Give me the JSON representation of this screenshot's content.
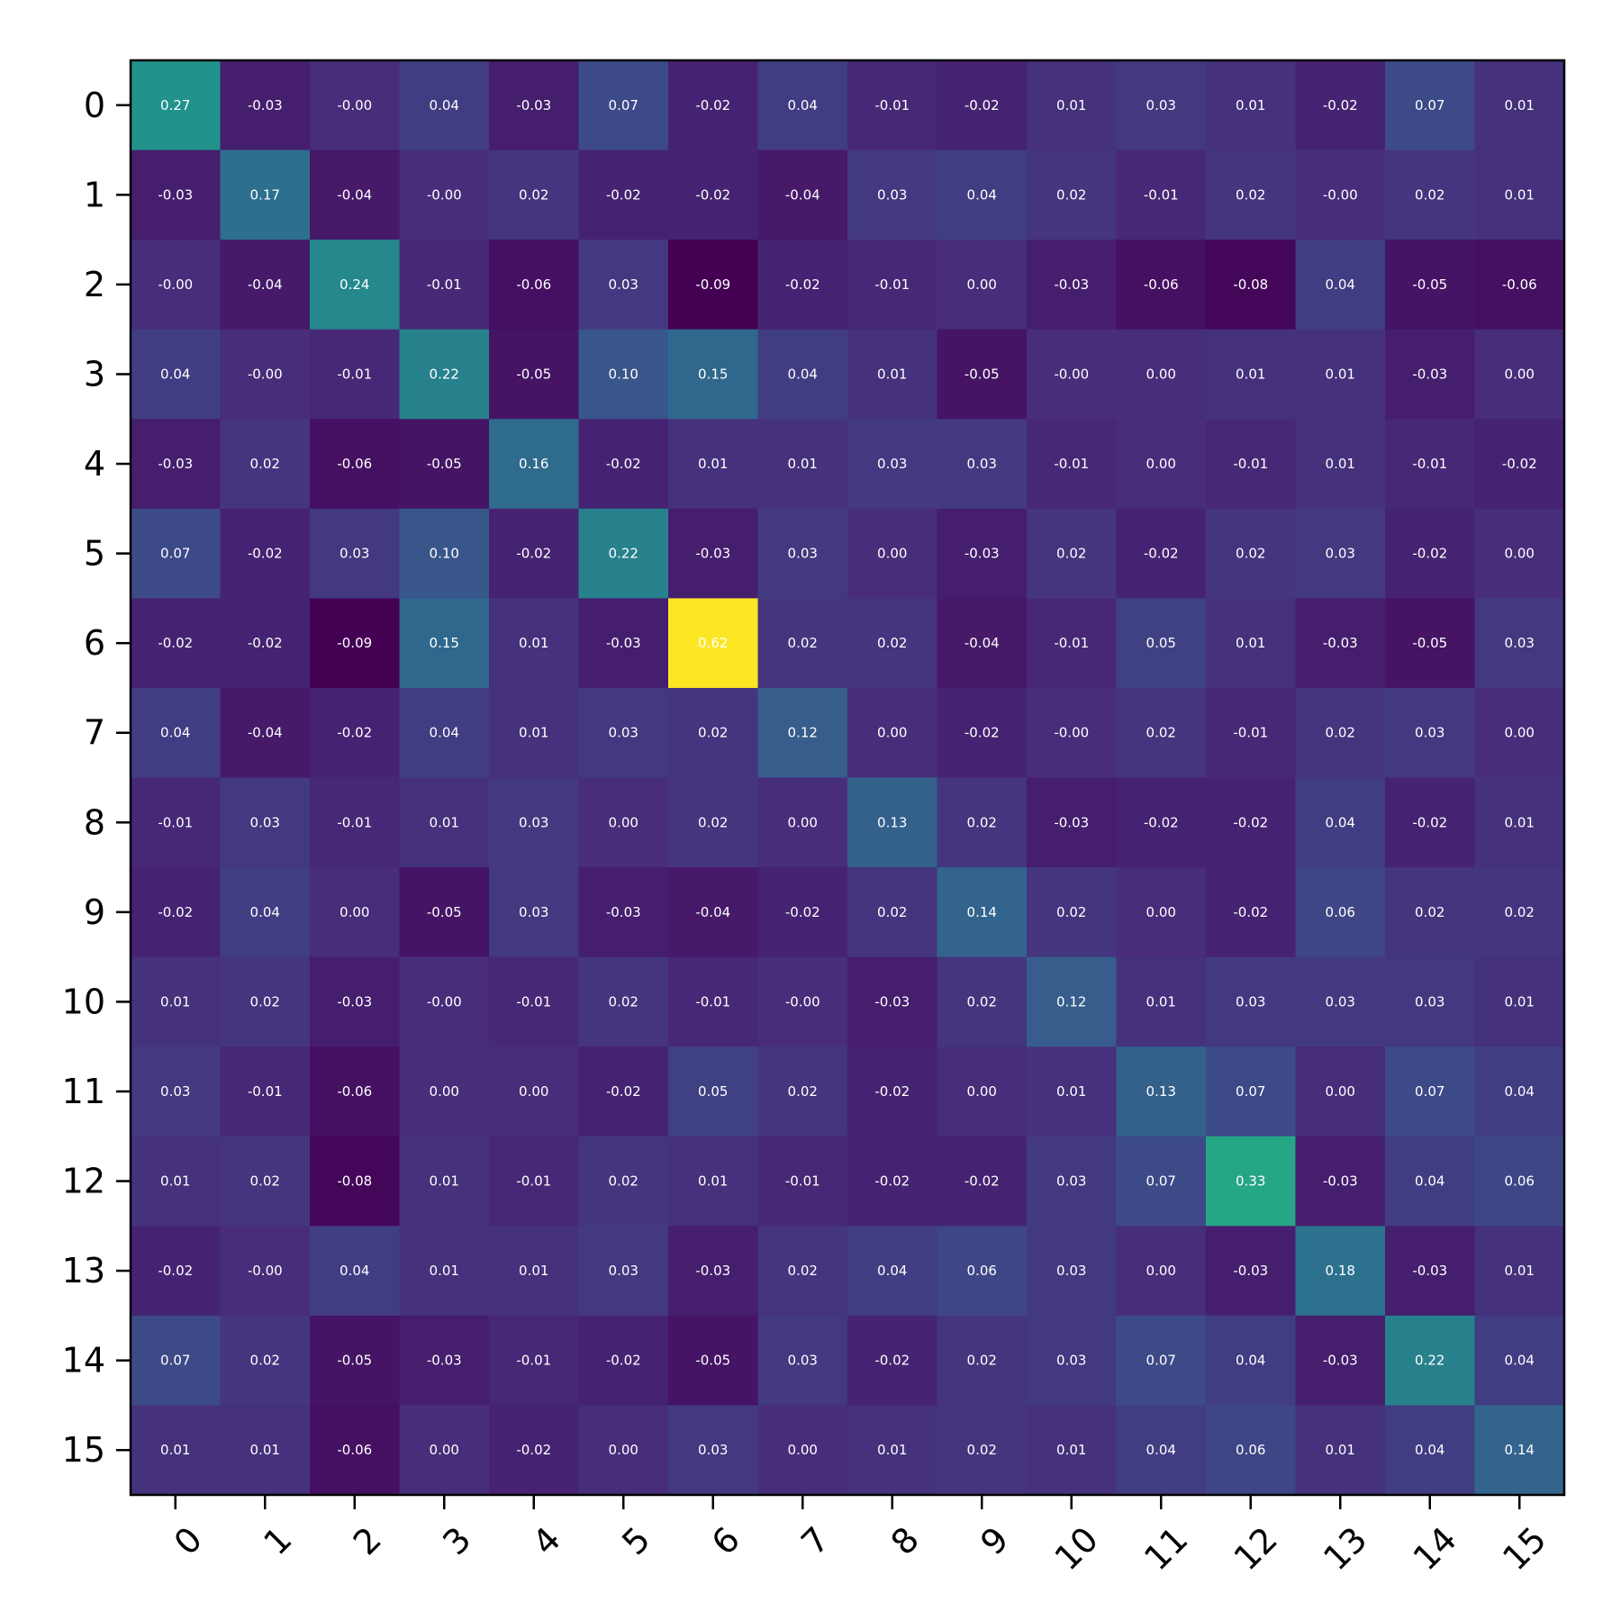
{
  "chart_data": {
    "type": "heatmap",
    "title": "",
    "xlabel": "",
    "ylabel": "",
    "colormap": "viridis",
    "vmin": -0.09,
    "vmax": 0.62,
    "x_tick_labels": [
      "0",
      "1",
      "2",
      "3",
      "4",
      "5",
      "6",
      "7",
      "8",
      "9",
      "10",
      "11",
      "12",
      "13",
      "14",
      "15"
    ],
    "y_tick_labels": [
      "0",
      "1",
      "2",
      "3",
      "4",
      "5",
      "6",
      "7",
      "8",
      "9",
      "10",
      "11",
      "12",
      "13",
      "14",
      "15"
    ],
    "cell_labels": [
      [
        "0.27",
        "-0.03",
        "-0.00",
        "0.04",
        "-0.03",
        "0.07",
        "-0.02",
        "0.04",
        "-0.01",
        "-0.02",
        "0.01",
        "0.03",
        "0.01",
        "-0.02",
        "0.07",
        "0.01"
      ],
      [
        "-0.03",
        "0.17",
        "-0.04",
        "-0.00",
        "0.02",
        "-0.02",
        "-0.02",
        "-0.04",
        "0.03",
        "0.04",
        "0.02",
        "-0.01",
        "0.02",
        "-0.00",
        "0.02",
        "0.01"
      ],
      [
        "-0.00",
        "-0.04",
        "0.24",
        "-0.01",
        "-0.06",
        "0.03",
        "-0.09",
        "-0.02",
        "-0.01",
        "0.00",
        "-0.03",
        "-0.06",
        "-0.08",
        "0.04",
        "-0.05",
        "-0.06"
      ],
      [
        "0.04",
        "-0.00",
        "-0.01",
        "0.22",
        "-0.05",
        "0.10",
        "0.15",
        "0.04",
        "0.01",
        "-0.05",
        "-0.00",
        "0.00",
        "0.01",
        "0.01",
        "-0.03",
        "0.00"
      ],
      [
        "-0.03",
        "0.02",
        "-0.06",
        "-0.05",
        "0.16",
        "-0.02",
        "0.01",
        "0.01",
        "0.03",
        "0.03",
        "-0.01",
        "0.00",
        "-0.01",
        "0.01",
        "-0.01",
        "-0.02"
      ],
      [
        "0.07",
        "-0.02",
        "0.03",
        "0.10",
        "-0.02",
        "0.22",
        "-0.03",
        "0.03",
        "0.00",
        "-0.03",
        "0.02",
        "-0.02",
        "0.02",
        "0.03",
        "-0.02",
        "0.00"
      ],
      [
        "-0.02",
        "-0.02",
        "-0.09",
        "0.15",
        "0.01",
        "-0.03",
        "0.62",
        "0.02",
        "0.02",
        "-0.04",
        "-0.01",
        "0.05",
        "0.01",
        "-0.03",
        "-0.05",
        "0.03"
      ],
      [
        "0.04",
        "-0.04",
        "-0.02",
        "0.04",
        "0.01",
        "0.03",
        "0.02",
        "0.12",
        "0.00",
        "-0.02",
        "-0.00",
        "0.02",
        "-0.01",
        "0.02",
        "0.03",
        "0.00"
      ],
      [
        "-0.01",
        "0.03",
        "-0.01",
        "0.01",
        "0.03",
        "0.00",
        "0.02",
        "0.00",
        "0.13",
        "0.02",
        "-0.03",
        "-0.02",
        "-0.02",
        "0.04",
        "-0.02",
        "0.01"
      ],
      [
        "-0.02",
        "0.04",
        "0.00",
        "-0.05",
        "0.03",
        "-0.03",
        "-0.04",
        "-0.02",
        "0.02",
        "0.14",
        "0.02",
        "0.00",
        "-0.02",
        "0.06",
        "0.02",
        "0.02"
      ],
      [
        "0.01",
        "0.02",
        "-0.03",
        "-0.00",
        "-0.01",
        "0.02",
        "-0.01",
        "-0.00",
        "-0.03",
        "0.02",
        "0.12",
        "0.01",
        "0.03",
        "0.03",
        "0.03",
        "0.01"
      ],
      [
        "0.03",
        "-0.01",
        "-0.06",
        "0.00",
        "0.00",
        "-0.02",
        "0.05",
        "0.02",
        "-0.02",
        "0.00",
        "0.01",
        "0.13",
        "0.07",
        "0.00",
        "0.07",
        "0.04"
      ],
      [
        "0.01",
        "0.02",
        "-0.08",
        "0.01",
        "-0.01",
        "0.02",
        "0.01",
        "-0.01",
        "-0.02",
        "-0.02",
        "0.03",
        "0.07",
        "0.33",
        "-0.03",
        "0.04",
        "0.06"
      ],
      [
        "-0.02",
        "-0.00",
        "0.04",
        "0.01",
        "0.01",
        "0.03",
        "-0.03",
        "0.02",
        "0.04",
        "0.06",
        "0.03",
        "0.00",
        "-0.03",
        "0.18",
        "-0.03",
        "0.01"
      ],
      [
        "0.07",
        "0.02",
        "-0.05",
        "-0.03",
        "-0.01",
        "-0.02",
        "-0.05",
        "0.03",
        "-0.02",
        "0.02",
        "0.03",
        "0.07",
        "0.04",
        "-0.03",
        "0.22",
        "0.04"
      ],
      [
        "0.01",
        "0.01",
        "-0.06",
        "0.00",
        "-0.02",
        "0.00",
        "0.03",
        "0.00",
        "0.01",
        "0.02",
        "0.01",
        "0.04",
        "0.06",
        "0.01",
        "0.04",
        "0.14"
      ]
    ]
  }
}
